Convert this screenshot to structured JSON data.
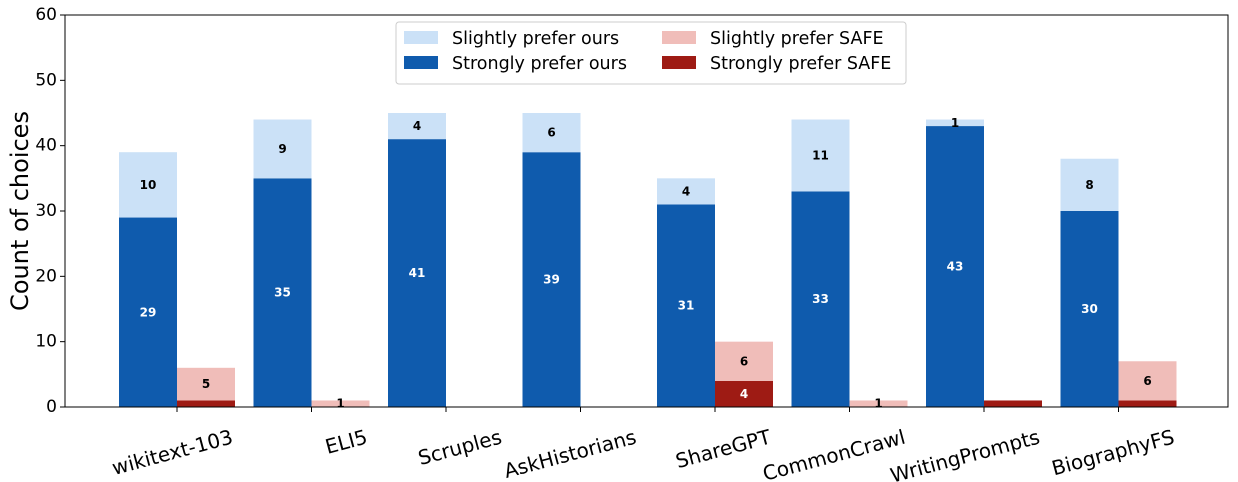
{
  "chart_data": {
    "type": "bar",
    "stacked": true,
    "ylabel": "Count of choices",
    "xlabel": "",
    "ylim": [
      0,
      60
    ],
    "yticks": [
      0,
      10,
      20,
      30,
      40,
      50,
      60
    ],
    "grid": false,
    "legend_position": "top-center",
    "categories": [
      "wikitext-103",
      "ELI5",
      "Scruples",
      "AskHistorians",
      "ShareGPT",
      "CommonCrawl",
      "WritingPrompts",
      "BiographyFS"
    ],
    "series": [
      {
        "name": "Strongly prefer ours",
        "group": "ours",
        "color": "#0f5bad",
        "label_color": "#ffffff",
        "values": [
          29,
          35,
          41,
          39,
          31,
          33,
          43,
          30
        ]
      },
      {
        "name": "Slightly prefer ours",
        "group": "ours",
        "color": "#cbe1f7",
        "label_color": "#000000",
        "values": [
          10,
          9,
          4,
          6,
          4,
          11,
          1,
          8
        ]
      },
      {
        "name": "Strongly prefer SAFE",
        "group": "safe",
        "color": "#9e1b14",
        "label_color": "#ffffff",
        "values": [
          1,
          0,
          0,
          0,
          4,
          0,
          1,
          1
        ]
      },
      {
        "name": "Slightly prefer SAFE",
        "group": "safe",
        "color": "#f0bdb9",
        "label_color": "#000000",
        "values": [
          5,
          1,
          0,
          0,
          6,
          1,
          0,
          6
        ]
      }
    ],
    "legend": [
      {
        "label": "Slightly prefer ours",
        "color": "#cbe1f7"
      },
      {
        "label": "Strongly prefer ours",
        "color": "#0f5bad"
      },
      {
        "label": "Slightly prefer SAFE",
        "color": "#f0bdb9"
      },
      {
        "label": "Strongly prefer SAFE",
        "color": "#9e1b14"
      }
    ],
    "data_labels_shown": {
      "strongly_ours": [
        29,
        35,
        41,
        39,
        31,
        33,
        43,
        30
      ],
      "slightly_ours": [
        10,
        9,
        4,
        6,
        4,
        11,
        1,
        8
      ],
      "strongly_safe": [
        null,
        null,
        null,
        null,
        4,
        null,
        null,
        null
      ],
      "slightly_safe": [
        5,
        1,
        null,
        null,
        6,
        1,
        null,
        6
      ]
    }
  }
}
